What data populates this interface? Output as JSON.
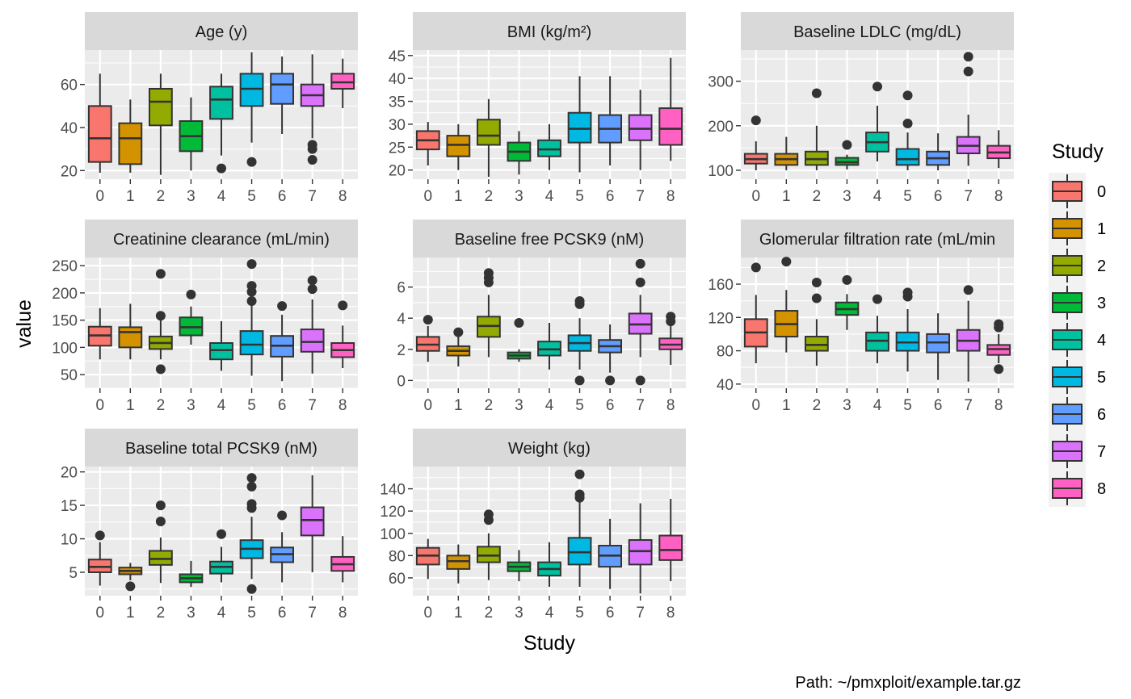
{
  "chart_data": {
    "type": "boxplot",
    "xlabel": "Study",
    "ylabel": "value",
    "caption": "Path: ~/pmxploit/example.tar.gz",
    "legend": {
      "title": "Study",
      "position": "right",
      "labels": [
        "0",
        "1",
        "2",
        "3",
        "4",
        "5",
        "6",
        "7",
        "8"
      ]
    },
    "categories": [
      "0",
      "1",
      "2",
      "3",
      "4",
      "5",
      "6",
      "7",
      "8"
    ],
    "colors": [
      "#F8766D",
      "#D39200",
      "#93AA00",
      "#00BA38",
      "#00C19F",
      "#00B9E3",
      "#619CFF",
      "#DB72FB",
      "#FF61C3"
    ],
    "panel_background": "#EBEBEB",
    "strip_background": "#D9D9D9",
    "grid": true,
    "panels": [
      {
        "title": "Age (y)",
        "ylim": [
          16,
          76
        ],
        "yticks": [
          20,
          40,
          60
        ],
        "boxes": [
          {
            "lo": 19,
            "q1": 24,
            "med": 35,
            "q3": 50,
            "hi": 65,
            "outliers": []
          },
          {
            "lo": 19,
            "q1": 23,
            "med": 35,
            "q3": 42,
            "hi": 53,
            "outliers": []
          },
          {
            "lo": 18,
            "q1": 41,
            "med": 52,
            "q3": 58,
            "hi": 65,
            "outliers": []
          },
          {
            "lo": 20,
            "q1": 29,
            "med": 36,
            "q3": 43,
            "hi": 54,
            "outliers": []
          },
          {
            "lo": 27,
            "q1": 44,
            "med": 53,
            "q3": 59,
            "hi": 65,
            "outliers": [
              21
            ]
          },
          {
            "lo": 33,
            "q1": 50,
            "med": 58,
            "q3": 65,
            "hi": 75,
            "outliers": [
              24
            ]
          },
          {
            "lo": 37,
            "q1": 51,
            "med": 60,
            "q3": 65,
            "hi": 73,
            "outliers": []
          },
          {
            "lo": 35,
            "q1": 50,
            "med": 55,
            "q3": 60,
            "hi": 74,
            "outliers": [
              25,
              30,
              32
            ]
          },
          {
            "lo": 49,
            "q1": 58,
            "med": 61,
            "q3": 65,
            "hi": 72,
            "outliers": []
          }
        ]
      },
      {
        "title": "BMI (kg/m²)",
        "ylim": [
          18,
          46.2
        ],
        "yticks": [
          20,
          25,
          30,
          35,
          40,
          45
        ],
        "boxes": [
          {
            "lo": 21,
            "q1": 24.5,
            "med": 26.5,
            "q3": 28.5,
            "hi": 30.5,
            "outliers": []
          },
          {
            "lo": 20,
            "q1": 23,
            "med": 25.5,
            "q3": 27.5,
            "hi": 30,
            "outliers": []
          },
          {
            "lo": 18.5,
            "q1": 25.5,
            "med": 27.5,
            "q3": 31,
            "hi": 35.5,
            "outliers": []
          },
          {
            "lo": 19,
            "q1": 22,
            "med": 24,
            "q3": 26,
            "hi": 28.5,
            "outliers": []
          },
          {
            "lo": 20,
            "q1": 23,
            "med": 24.5,
            "q3": 26.5,
            "hi": 30,
            "outliers": []
          },
          {
            "lo": 19.5,
            "q1": 26,
            "med": 29,
            "q3": 32.5,
            "hi": 40.5,
            "outliers": []
          },
          {
            "lo": 21,
            "q1": 26,
            "med": 29,
            "q3": 32,
            "hi": 40.5,
            "outliers": []
          },
          {
            "lo": 20,
            "q1": 26.5,
            "med": 29,
            "q3": 32,
            "hi": 37.5,
            "outliers": []
          },
          {
            "lo": 22,
            "q1": 25.5,
            "med": 29,
            "q3": 33.5,
            "hi": 44.5,
            "outliers": []
          }
        ]
      },
      {
        "title": "Baseline LDLC (mg/dL)",
        "ylim": [
          80,
          370
        ],
        "yticks": [
          100,
          200,
          300
        ],
        "boxes": [
          {
            "lo": 100,
            "q1": 115,
            "med": 125,
            "q3": 137,
            "hi": 165,
            "outliers": [
              212
            ]
          },
          {
            "lo": 100,
            "q1": 112,
            "med": 125,
            "q3": 137,
            "hi": 175,
            "outliers": []
          },
          {
            "lo": 100,
            "q1": 112,
            "med": 125,
            "q3": 142,
            "hi": 200,
            "outliers": [
              273
            ]
          },
          {
            "lo": 102,
            "q1": 112,
            "med": 118,
            "q3": 128,
            "hi": 135,
            "outliers": [
              157
            ]
          },
          {
            "lo": 120,
            "q1": 142,
            "med": 163,
            "q3": 185,
            "hi": 245,
            "outliers": [
              288
            ]
          },
          {
            "lo": 100,
            "q1": 112,
            "med": 125,
            "q3": 148,
            "hi": 185,
            "outliers": [
              205,
              268
            ]
          },
          {
            "lo": 100,
            "q1": 112,
            "med": 127,
            "q3": 142,
            "hi": 183,
            "outliers": []
          },
          {
            "lo": 110,
            "q1": 138,
            "med": 155,
            "q3": 175,
            "hi": 225,
            "outliers": [
              322,
              355
            ]
          },
          {
            "lo": 105,
            "q1": 127,
            "med": 140,
            "q3": 155,
            "hi": 190,
            "outliers": []
          }
        ]
      },
      {
        "title": "Creatinine clearance (mL/min)",
        "ylim": [
          25,
          265
        ],
        "yticks": [
          50,
          100,
          150,
          200,
          250
        ],
        "boxes": [
          {
            "lo": 78,
            "q1": 103,
            "med": 122,
            "q3": 138,
            "hi": 172,
            "outliers": []
          },
          {
            "lo": 78,
            "q1": 100,
            "med": 128,
            "q3": 137,
            "hi": 180,
            "outliers": []
          },
          {
            "lo": 78,
            "q1": 97,
            "med": 108,
            "q3": 120,
            "hi": 150,
            "outliers": [
              60,
              158,
              235
            ]
          },
          {
            "lo": 105,
            "q1": 122,
            "med": 137,
            "q3": 155,
            "hi": 175,
            "outliers": [
              197
            ]
          },
          {
            "lo": 57,
            "q1": 78,
            "med": 95,
            "q3": 108,
            "hi": 148,
            "outliers": []
          },
          {
            "lo": 48,
            "q1": 87,
            "med": 105,
            "q3": 130,
            "hi": 188,
            "outliers": [
              185,
              202,
              213,
              253
            ]
          },
          {
            "lo": 38,
            "q1": 83,
            "med": 103,
            "q3": 121,
            "hi": 160,
            "outliers": [
              176
            ]
          },
          {
            "lo": 52,
            "q1": 92,
            "med": 110,
            "q3": 133,
            "hi": 188,
            "outliers": [
              207,
              223
            ]
          },
          {
            "lo": 62,
            "q1": 82,
            "med": 95,
            "q3": 108,
            "hi": 140,
            "outliers": [
              177
            ]
          }
        ]
      },
      {
        "title": "Baseline free PCSK9 (nM)",
        "ylim": [
          -0.5,
          7.9
        ],
        "yticks": [
          0,
          2,
          4,
          6
        ],
        "boxes": [
          {
            "lo": 1.2,
            "q1": 1.9,
            "med": 2.3,
            "q3": 2.8,
            "hi": 3.5,
            "outliers": [
              3.9
            ]
          },
          {
            "lo": 0.9,
            "q1": 1.6,
            "med": 1.9,
            "q3": 2.2,
            "hi": 2.9,
            "outliers": [
              3.1
            ]
          },
          {
            "lo": 1.5,
            "q1": 2.8,
            "med": 3.5,
            "q3": 4.1,
            "hi": 5.5,
            "outliers": [
              6.3,
              6.6,
              6.9
            ]
          },
          {
            "lo": 1.2,
            "q1": 1.4,
            "med": 1.6,
            "q3": 1.8,
            "hi": 2.0,
            "outliers": [
              3.7
            ]
          },
          {
            "lo": 0.7,
            "q1": 1.6,
            "med": 2.0,
            "q3": 2.5,
            "hi": 3.7,
            "outliers": []
          },
          {
            "lo": 0.7,
            "q1": 1.9,
            "med": 2.4,
            "q3": 2.9,
            "hi": 4.0,
            "outliers": [
              0.0,
              4.9,
              5.1
            ]
          },
          {
            "lo": 0.5,
            "q1": 1.8,
            "med": 2.2,
            "q3": 2.6,
            "hi": 3.6,
            "outliers": [
              0.0
            ]
          },
          {
            "lo": 1.5,
            "q1": 3.0,
            "med": 3.6,
            "q3": 4.3,
            "hi": 5.5,
            "outliers": [
              0.0,
              6.3,
              7.5
            ]
          },
          {
            "lo": 1.0,
            "q1": 2.0,
            "med": 2.3,
            "q3": 2.7,
            "hi": 3.5,
            "outliers": [
              3.8,
              4.1
            ]
          }
        ]
      },
      {
        "title": "Glomerular filtration rate (mL/min",
        "ylim": [
          35,
          192
        ],
        "yticks": [
          40,
          80,
          120,
          160
        ],
        "boxes": [
          {
            "lo": 65,
            "q1": 85,
            "med": 102,
            "q3": 118,
            "hi": 147,
            "outliers": [
              180
            ]
          },
          {
            "lo": 78,
            "q1": 97,
            "med": 112,
            "q3": 128,
            "hi": 153,
            "outliers": [
              187
            ]
          },
          {
            "lo": 62,
            "q1": 80,
            "med": 87,
            "q3": 97,
            "hi": 118,
            "outliers": [
              143,
              162
            ]
          },
          {
            "lo": 105,
            "q1": 123,
            "med": 130,
            "q3": 138,
            "hi": 148,
            "outliers": [
              165
            ]
          },
          {
            "lo": 65,
            "q1": 80,
            "med": 92,
            "q3": 102,
            "hi": 122,
            "outliers": [
              142
            ]
          },
          {
            "lo": 55,
            "q1": 80,
            "med": 90,
            "q3": 102,
            "hi": 130,
            "outliers": [
              145,
              150
            ]
          },
          {
            "lo": 45,
            "q1": 78,
            "med": 90,
            "q3": 100,
            "hi": 125,
            "outliers": []
          },
          {
            "lo": 43,
            "q1": 80,
            "med": 92,
            "q3": 105,
            "hi": 140,
            "outliers": [
              153
            ]
          },
          {
            "lo": 65,
            "q1": 75,
            "med": 82,
            "q3": 87,
            "hi": 100,
            "outliers": [
              58,
              108,
              112
            ]
          }
        ]
      },
      {
        "title": "Baseline total PCSK9 (nM)",
        "ylim": [
          1.5,
          20.8
        ],
        "yticks": [
          5,
          10,
          15,
          20
        ],
        "boxes": [
          {
            "lo": 3.0,
            "q1": 5.0,
            "med": 5.8,
            "q3": 6.9,
            "hi": 9.5,
            "outliers": [
              10.5
            ]
          },
          {
            "lo": 3.8,
            "q1": 4.7,
            "med": 5.2,
            "q3": 5.7,
            "hi": 6.4,
            "outliers": [
              2.9
            ]
          },
          {
            "lo": 3.4,
            "q1": 6.1,
            "med": 7.0,
            "q3": 8.2,
            "hi": 10.2,
            "outliers": [
              12.6,
              15.0
            ]
          },
          {
            "lo": 2.8,
            "q1": 3.5,
            "med": 4.1,
            "q3": 4.7,
            "hi": 6.7,
            "outliers": []
          },
          {
            "lo": 3.5,
            "q1": 4.8,
            "med": 5.8,
            "q3": 6.6,
            "hi": 8.8,
            "outliers": [
              10.7
            ]
          },
          {
            "lo": 4.0,
            "q1": 7.1,
            "med": 8.5,
            "q3": 9.8,
            "hi": 13.3,
            "outliers": [
              2.5,
              14.6,
              15.2,
              17.8,
              19.1
            ]
          },
          {
            "lo": 3.5,
            "q1": 6.5,
            "med": 7.7,
            "q3": 8.7,
            "hi": 11.0,
            "outliers": [
              13.5
            ]
          },
          {
            "lo": 5.0,
            "q1": 10.5,
            "med": 12.8,
            "q3": 14.7,
            "hi": 19.5,
            "outliers": []
          },
          {
            "lo": 3.5,
            "q1": 5.2,
            "med": 6.2,
            "q3": 7.3,
            "hi": 10.4,
            "outliers": []
          }
        ]
      },
      {
        "title": "Weight (kg)",
        "ylim": [
          44,
          160
        ],
        "yticks": [
          60,
          80,
          100,
          120,
          140
        ],
        "boxes": [
          {
            "lo": 59,
            "q1": 72,
            "med": 80,
            "q3": 87,
            "hi": 95,
            "outliers": []
          },
          {
            "lo": 55,
            "q1": 68,
            "med": 75,
            "q3": 80,
            "hi": 90,
            "outliers": []
          },
          {
            "lo": 58,
            "q1": 74,
            "med": 80,
            "q3": 88,
            "hi": 100,
            "outliers": [
              112,
              117
            ]
          },
          {
            "lo": 57,
            "q1": 66,
            "med": 70,
            "q3": 74,
            "hi": 85,
            "outliers": []
          },
          {
            "lo": 52,
            "q1": 62,
            "med": 68,
            "q3": 74,
            "hi": 92,
            "outliers": []
          },
          {
            "lo": 52,
            "q1": 72,
            "med": 83,
            "q3": 96,
            "hi": 128,
            "outliers": [
              132,
              135,
              153
            ]
          },
          {
            "lo": 50,
            "q1": 70,
            "med": 80,
            "q3": 89,
            "hi": 113,
            "outliers": []
          },
          {
            "lo": 46,
            "q1": 72,
            "med": 84,
            "q3": 94,
            "hi": 127,
            "outliers": []
          },
          {
            "lo": 57,
            "q1": 76,
            "med": 85,
            "q3": 98,
            "hi": 131,
            "outliers": []
          }
        ]
      }
    ]
  }
}
